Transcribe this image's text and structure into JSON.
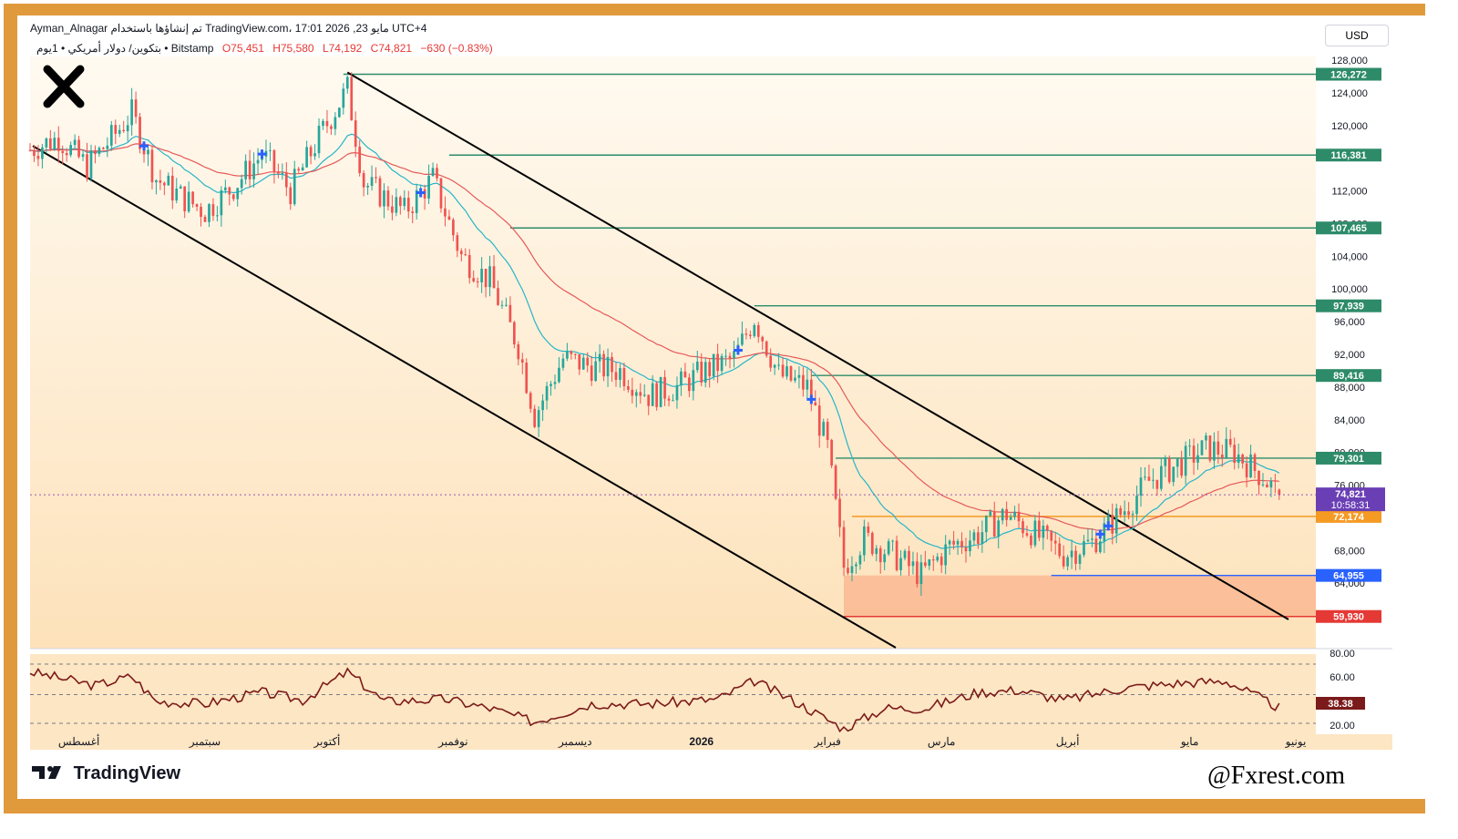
{
  "header": {
    "line1": "Ayman_Alnagar تم إنشاؤها باستخدام TradingView.com، 17:01 2026 ,23 مايو UTC+4",
    "symbol": "بتكوين/ دولار أمريكي • 1يوم • Bitstamp",
    "open": "O75,451",
    "high": "H75,580",
    "low": "L74,192",
    "close": "C74,821",
    "change": "−630 (−0.83%)"
  },
  "currency": "USD",
  "footer": {
    "logo_text": "TradingView",
    "brand": "@Fxrest.com"
  },
  "colors": {
    "up": "#26a69a",
    "down": "#ef5350",
    "frame": "#e09a3c",
    "level": "#2e8b6a",
    "ema_fast": "#26b5c9",
    "ema_slow": "#e55a5a",
    "rsi": "#7b1a1a",
    "channel": "#000000"
  },
  "chart_data": {
    "type": "candlestick",
    "symbol": "BTC/USD",
    "interval": "1D",
    "ylim": [
      56000,
      128000
    ],
    "y_ticks": [
      "128,000",
      "124,000",
      "120,000",
      "112,000",
      "108,000",
      "104,000",
      "100,000",
      "96,000",
      "92,000",
      "88,000",
      "84,000",
      "80,000",
      "76,000",
      "68,000",
      "64,000"
    ],
    "x_labels": [
      "أغسطس",
      "سبتمبر",
      "أكتوبر",
      "نوفمبر",
      "ديسمبر",
      "2026",
      "فبراير",
      "مارس",
      "أبريل",
      "مايو",
      "يونيو"
    ],
    "horizontal_levels": [
      {
        "value": 126272,
        "label": "126,272",
        "color": "#2e8b6a"
      },
      {
        "value": 116381,
        "label": "116,381",
        "color": "#2e8b6a"
      },
      {
        "value": 107465,
        "label": "107,465",
        "color": "#2e8b6a"
      },
      {
        "value": 97939,
        "label": "97,939",
        "color": "#2e8b6a"
      },
      {
        "value": 89416,
        "label": "89,416",
        "color": "#2e8b6a"
      },
      {
        "value": 79301,
        "label": "79,301",
        "color": "#2e8b6a"
      },
      {
        "value": 72174,
        "label": "72,174",
        "color": "#f59a23"
      },
      {
        "value": 64955,
        "label": "64,955",
        "color": "#2962ff"
      },
      {
        "value": 59930,
        "label": "59,930",
        "color": "#e53935"
      }
    ],
    "last_price": {
      "value": 74821,
      "label": "74,821",
      "countdown": "10:58:31"
    },
    "close_path": [
      [
        "2025-07-20",
        117000
      ],
      [
        "2025-07-27",
        118500
      ],
      [
        "2025-08-03",
        115000
      ],
      [
        "2025-08-10",
        119000
      ],
      [
        "2025-08-14",
        121500
      ],
      [
        "2025-08-20",
        113500
      ],
      [
        "2025-08-27",
        111000
      ],
      [
        "2025-09-01",
        109500
      ],
      [
        "2025-09-08",
        112500
      ],
      [
        "2025-09-15",
        116500
      ],
      [
        "2025-09-22",
        112000
      ],
      [
        "2025-09-29",
        118500
      ],
      [
        "2025-10-06",
        124500
      ],
      [
        "2025-10-10",
        113000
      ],
      [
        "2025-10-20",
        109500
      ],
      [
        "2025-10-27",
        113500
      ],
      [
        "2025-11-03",
        104000
      ],
      [
        "2025-11-10",
        101000
      ],
      [
        "2025-11-17",
        93000
      ],
      [
        "2025-11-21",
        84500
      ],
      [
        "2025-11-28",
        91500
      ],
      [
        "2025-12-05",
        90500
      ],
      [
        "2025-12-12",
        90000
      ],
      [
        "2025-12-19",
        87000
      ],
      [
        "2025-12-26",
        88000
      ],
      [
        "2026-01-02",
        90000
      ],
      [
        "2026-01-09",
        91500
      ],
      [
        "2026-01-14",
        96500
      ],
      [
        "2026-01-20",
        89500
      ],
      [
        "2026-01-27",
        88000
      ],
      [
        "2026-02-01",
        80500
      ],
      [
        "2026-02-05",
        66000
      ],
      [
        "2026-02-10",
        69500
      ],
      [
        "2026-02-17",
        67500
      ],
      [
        "2026-02-24",
        65000
      ],
      [
        "2026-03-03",
        68500
      ],
      [
        "2026-03-10",
        70000
      ],
      [
        "2026-03-17",
        72500
      ],
      [
        "2026-03-24",
        70000
      ],
      [
        "2026-03-31",
        67500
      ],
      [
        "2026-04-07",
        69000
      ],
      [
        "2026-04-14",
        72500
      ],
      [
        "2026-04-21",
        76500
      ],
      [
        "2026-04-28",
        78500
      ],
      [
        "2026-05-05",
        80500
      ],
      [
        "2026-05-12",
        80000
      ],
      [
        "2026-05-19",
        77000
      ],
      [
        "2026-05-23",
        74821
      ]
    ],
    "rsi": {
      "ylim": [
        20,
        80
      ],
      "ticks": [
        "80.00",
        "60.00",
        "20.00"
      ],
      "last": "38.38",
      "path": [
        [
          "2025-07-20",
          70
        ],
        [
          "2025-08-05",
          58
        ],
        [
          "2025-08-14",
          66
        ],
        [
          "2025-08-20",
          44
        ],
        [
          "2025-09-01",
          42
        ],
        [
          "2025-09-15",
          52
        ],
        [
          "2025-09-25",
          45
        ],
        [
          "2025-10-06",
          70
        ],
        [
          "2025-10-15",
          44
        ],
        [
          "2025-10-30",
          46
        ],
        [
          "2025-11-10",
          38
        ],
        [
          "2025-11-21",
          26
        ],
        [
          "2025-12-05",
          42
        ],
        [
          "2025-12-20",
          42
        ],
        [
          "2026-01-05",
          46
        ],
        [
          "2026-01-14",
          62
        ],
        [
          "2026-01-25",
          42
        ],
        [
          "2026-02-05",
          20
        ],
        [
          "2026-02-15",
          38
        ],
        [
          "2026-02-25",
          38
        ],
        [
          "2026-03-10",
          52
        ],
        [
          "2026-03-20",
          54
        ],
        [
          "2026-03-31",
          45
        ],
        [
          "2026-04-15",
          56
        ],
        [
          "2026-04-28",
          60
        ],
        [
          "2026-05-10",
          62
        ],
        [
          "2026-05-23",
          38.38
        ]
      ]
    }
  }
}
